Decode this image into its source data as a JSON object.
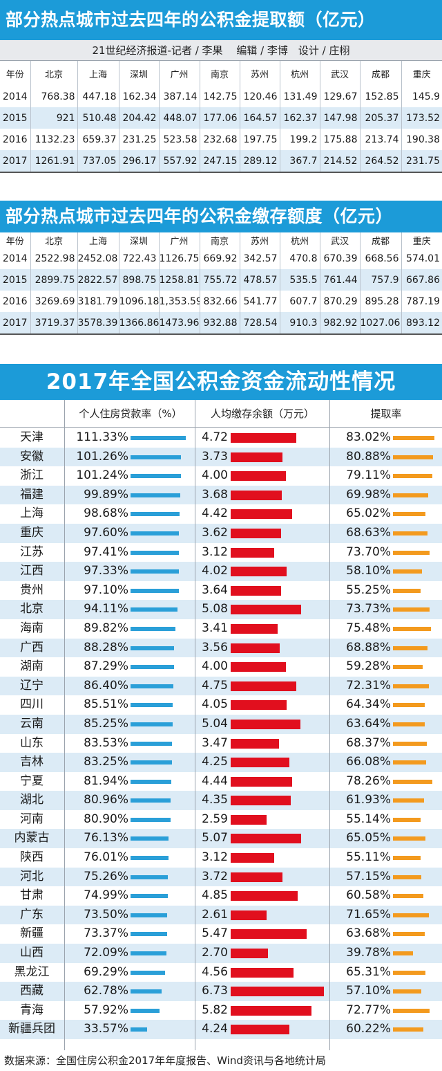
{
  "section1": {
    "title": "部分热点城市过去四年的公积金提取额（亿元）",
    "credit": "21世纪经济报道-记者 / 李果　 编辑 / 李博　设计 / 庄栩",
    "headers": [
      "年份",
      "北京",
      "上海",
      "深圳",
      "广州",
      "南京",
      "苏州",
      "杭州",
      "武汉",
      "成都",
      "重庆"
    ],
    "rows": [
      [
        "2014",
        "768.38",
        "447.18",
        "162.34",
        "387.14",
        "142.75",
        "120.46",
        "131.49",
        "129.67",
        "152.85",
        "145.9"
      ],
      [
        "2015",
        "921",
        "510.48",
        "204.42",
        "448.07",
        "177.06",
        "164.57",
        "162.37",
        "147.98",
        "205.37",
        "173.52"
      ],
      [
        "2016",
        "1132.23",
        "659.37",
        "231.25",
        "523.58",
        "232.68",
        "197.75",
        "199.2",
        "175.88",
        "213.74",
        "190.38"
      ],
      [
        "2017",
        "1261.91",
        "737.05",
        "296.17",
        "557.92",
        "247.15",
        "289.12",
        "367.7",
        "214.52",
        "264.52",
        "231.75"
      ]
    ]
  },
  "section2": {
    "title": "部分热点城市过去四年的公积金缴存额度（亿元）",
    "headers": [
      "年份",
      "北京",
      "上海",
      "深圳",
      "广州",
      "南京",
      "苏州",
      "杭州",
      "武汉",
      "成都",
      "重庆"
    ],
    "rows": [
      [
        "2014",
        "2522.98",
        "2452.08",
        "722.43",
        "1126.75",
        "669.92",
        "342.57",
        "470.8",
        "670.39",
        "668.56",
        "574.01"
      ],
      [
        "2015",
        "2899.75",
        "2822.57",
        "898.75",
        "1258.81",
        "755.72",
        "478.57",
        "535.5",
        "761.44",
        "757.9",
        "667.86"
      ],
      [
        "2016",
        "3269.69",
        "3181.79",
        "1096.18",
        "1,353.59",
        "832.66",
        "541.77",
        "607.7",
        "870.29",
        "895.28",
        "787.19"
      ],
      [
        "2017",
        "3719.37",
        "3578.39",
        "1366.86",
        "1473.96",
        "932.88",
        "728.54",
        "910.3",
        "982.92",
        "1027.06",
        "893.12"
      ]
    ]
  },
  "section3": {
    "title": "2017年全国公积金资金流动性情况",
    "columns": [
      "个人住房贷款率（%）",
      "人均缴存余额（万元）",
      "提取率"
    ]
  },
  "chart_data": {
    "type": "table",
    "title": "2017年全国公积金资金流动性情况",
    "columns": [
      "个人住房贷款率（%）",
      "人均缴存余额（万元）",
      "提取率"
    ],
    "series_colors": [
      "#2a9fd8",
      "#e10f1e",
      "#f39a1e"
    ],
    "rows": [
      {
        "name": "天津",
        "loan": "111.33%",
        "loan_v": 111.33,
        "bal": "4.72",
        "bal_v": 4.72,
        "wd": "83.02%",
        "wd_v": 83.02
      },
      {
        "name": "安徽",
        "loan": "101.26%",
        "loan_v": 101.26,
        "bal": "3.73",
        "bal_v": 3.73,
        "wd": "80.88%",
        "wd_v": 80.88
      },
      {
        "name": "浙江",
        "loan": "101.24%",
        "loan_v": 101.24,
        "bal": "4.00",
        "bal_v": 4.0,
        "wd": "79.11%",
        "wd_v": 79.11
      },
      {
        "name": "福建",
        "loan": "99.89%",
        "loan_v": 99.89,
        "bal": "3.68",
        "bal_v": 3.68,
        "wd": "69.98%",
        "wd_v": 69.98
      },
      {
        "name": "上海",
        "loan": "98.68%",
        "loan_v": 98.68,
        "bal": "4.42",
        "bal_v": 4.42,
        "wd": "65.02%",
        "wd_v": 65.02
      },
      {
        "name": "重庆",
        "loan": "97.60%",
        "loan_v": 97.6,
        "bal": "3.62",
        "bal_v": 3.62,
        "wd": "68.63%",
        "wd_v": 68.63
      },
      {
        "name": "江苏",
        "loan": "97.41%",
        "loan_v": 97.41,
        "bal": "3.12",
        "bal_v": 3.12,
        "wd": "73.70%",
        "wd_v": 73.7
      },
      {
        "name": "江西",
        "loan": "97.33%",
        "loan_v": 97.33,
        "bal": "4.02",
        "bal_v": 4.02,
        "wd": "58.10%",
        "wd_v": 58.1
      },
      {
        "name": "贵州",
        "loan": "97.10%",
        "loan_v": 97.1,
        "bal": "3.64",
        "bal_v": 3.64,
        "wd": "55.25%",
        "wd_v": 55.25
      },
      {
        "name": "北京",
        "loan": "94.11%",
        "loan_v": 94.11,
        "bal": "5.08",
        "bal_v": 5.08,
        "wd": "73.73%",
        "wd_v": 73.73
      },
      {
        "name": "海南",
        "loan": "89.82%",
        "loan_v": 89.82,
        "bal": "3.41",
        "bal_v": 3.41,
        "wd": "75.48%",
        "wd_v": 75.48
      },
      {
        "name": "广西",
        "loan": "88.28%",
        "loan_v": 88.28,
        "bal": "3.56",
        "bal_v": 3.56,
        "wd": "68.88%",
        "wd_v": 68.88
      },
      {
        "name": "湖南",
        "loan": "87.29%",
        "loan_v": 87.29,
        "bal": "4.00",
        "bal_v": 4.0,
        "wd": "59.28%",
        "wd_v": 59.28
      },
      {
        "name": "辽宁",
        "loan": "86.40%",
        "loan_v": 86.4,
        "bal": "4.75",
        "bal_v": 4.75,
        "wd": "72.31%",
        "wd_v": 72.31
      },
      {
        "name": "四川",
        "loan": "85.51%",
        "loan_v": 85.51,
        "bal": "4.05",
        "bal_v": 4.05,
        "wd": "64.34%",
        "wd_v": 64.34
      },
      {
        "name": "云南",
        "loan": "85.25%",
        "loan_v": 85.25,
        "bal": "5.04",
        "bal_v": 5.04,
        "wd": "63.64%",
        "wd_v": 63.64
      },
      {
        "name": "山东",
        "loan": "83.53%",
        "loan_v": 83.53,
        "bal": "3.47",
        "bal_v": 3.47,
        "wd": "68.37%",
        "wd_v": 68.37
      },
      {
        "name": "吉林",
        "loan": "83.25%",
        "loan_v": 83.25,
        "bal": "4.25",
        "bal_v": 4.25,
        "wd": "66.08%",
        "wd_v": 66.08
      },
      {
        "name": "宁夏",
        "loan": "81.94%",
        "loan_v": 81.94,
        "bal": "4.44",
        "bal_v": 4.44,
        "wd": "78.26%",
        "wd_v": 78.26
      },
      {
        "name": "湖北",
        "loan": "80.96%",
        "loan_v": 80.96,
        "bal": "4.35",
        "bal_v": 4.35,
        "wd": "61.93%",
        "wd_v": 61.93
      },
      {
        "name": "河南",
        "loan": "80.90%",
        "loan_v": 80.9,
        "bal": "2.59",
        "bal_v": 2.59,
        "wd": "55.14%",
        "wd_v": 55.14
      },
      {
        "name": "内蒙古",
        "loan": "76.13%",
        "loan_v": 76.13,
        "bal": "5.07",
        "bal_v": 5.07,
        "wd": "65.05%",
        "wd_v": 65.05
      },
      {
        "name": "陕西",
        "loan": "76.01%",
        "loan_v": 76.01,
        "bal": "3.12",
        "bal_v": 3.12,
        "wd": "55.11%",
        "wd_v": 55.11
      },
      {
        "name": "河北",
        "loan": "75.26%",
        "loan_v": 75.26,
        "bal": "3.72",
        "bal_v": 3.72,
        "wd": "57.15%",
        "wd_v": 57.15
      },
      {
        "name": "甘肃",
        "loan": "74.99%",
        "loan_v": 74.99,
        "bal": "4.85",
        "bal_v": 4.85,
        "wd": "60.58%",
        "wd_v": 60.58
      },
      {
        "name": "广东",
        "loan": "73.50%",
        "loan_v": 73.5,
        "bal": "2.61",
        "bal_v": 2.61,
        "wd": "71.65%",
        "wd_v": 71.65
      },
      {
        "name": "新疆",
        "loan": "73.37%",
        "loan_v": 73.37,
        "bal": "5.47",
        "bal_v": 5.47,
        "wd": "63.68%",
        "wd_v": 63.68
      },
      {
        "name": "山西",
        "loan": "72.09%",
        "loan_v": 72.09,
        "bal": "2.70",
        "bal_v": 2.7,
        "wd": "39.78%",
        "wd_v": 39.78
      },
      {
        "name": "黑龙江",
        "loan": "69.29%",
        "loan_v": 69.29,
        "bal": "4.56",
        "bal_v": 4.56,
        "wd": "65.31%",
        "wd_v": 65.31
      },
      {
        "name": "西藏",
        "loan": "62.78%",
        "loan_v": 62.78,
        "bal": "6.73",
        "bal_v": 6.73,
        "wd": "57.10%",
        "wd_v": 57.1
      },
      {
        "name": "青海",
        "loan": "57.92%",
        "loan_v": 57.92,
        "bal": "5.82",
        "bal_v": 5.82,
        "wd": "72.77%",
        "wd_v": 72.77
      },
      {
        "name": "新疆兵团",
        "loan": "33.57%",
        "loan_v": 33.57,
        "bal": "4.24",
        "bal_v": 4.24,
        "wd": "60.22%",
        "wd_v": 60.22
      }
    ]
  },
  "source": "数据来源：全国住房公积金2017年年度报告、Wind资讯与各地统计局"
}
